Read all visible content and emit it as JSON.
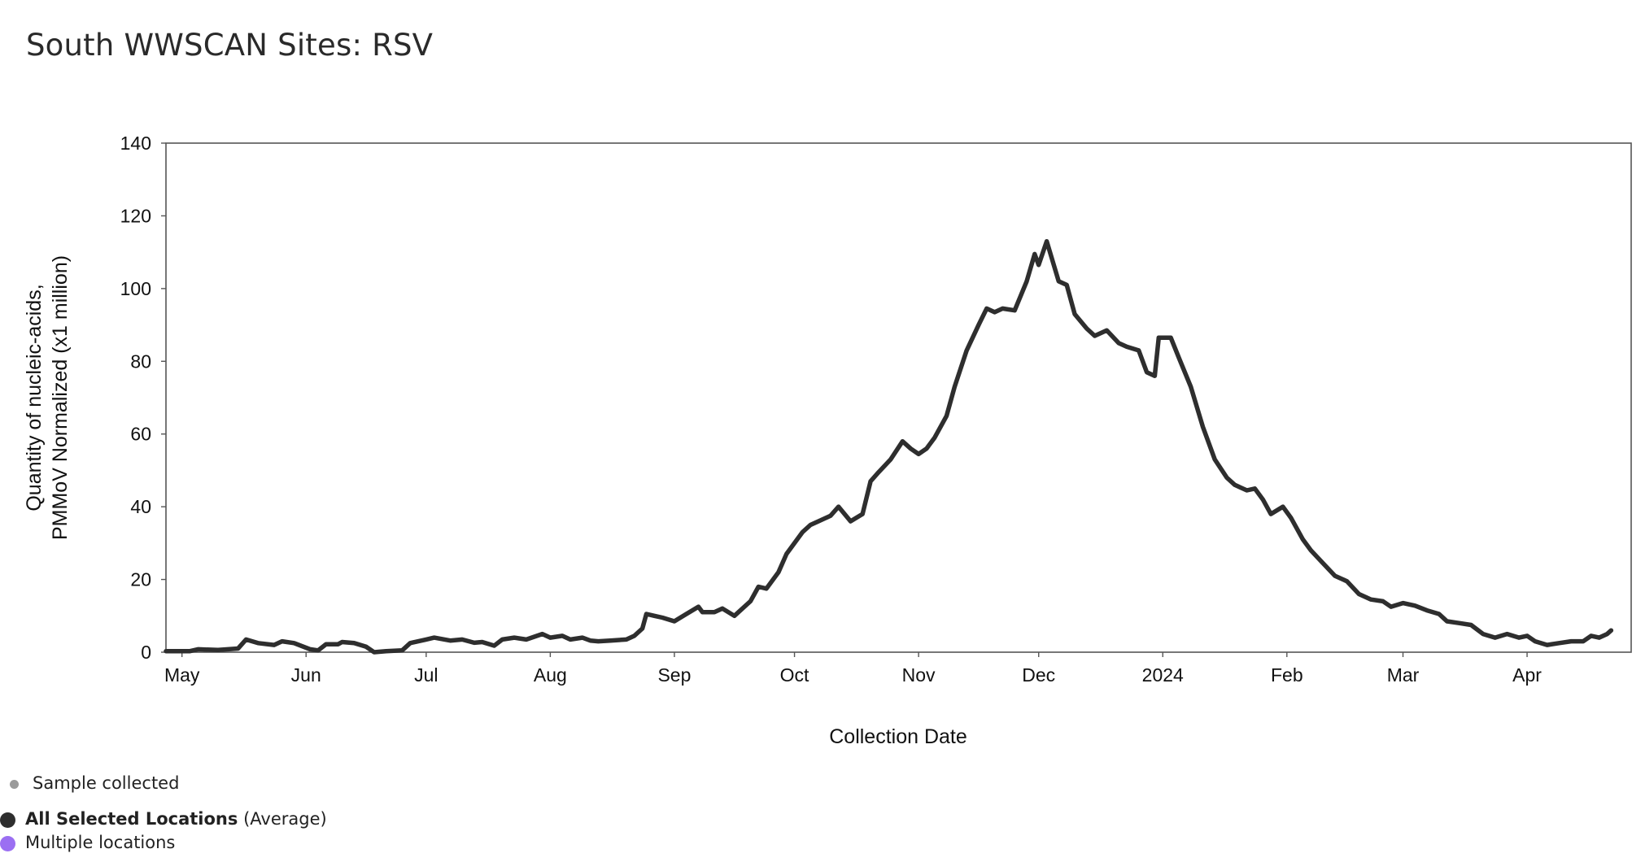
{
  "page": {
    "title": "South WWSCAN Sites: RSV"
  },
  "legend": {
    "sample_label": "Sample collected",
    "all_label_bold": "All Selected Locations",
    "all_label_suffix": "(Average)",
    "multi_label": "Multiple locations",
    "colors": {
      "sample": "#9a9a9a",
      "all": "#2e2e2e",
      "multi": "#9b6ff2"
    }
  },
  "chart_data": {
    "type": "line",
    "title": "South WWSCAN Sites: RSV",
    "xlabel": "Collection Date",
    "ylabel_lines": [
      "Quantity of nucleic-acids,",
      "PMMoV Normalized (x1 million)"
    ],
    "x_type": "date",
    "xlim": [
      "2023-04-27",
      "2024-04-27"
    ],
    "ylim": [
      0,
      140
    ],
    "yticks": [
      0,
      20,
      40,
      60,
      80,
      100,
      120,
      140
    ],
    "xticks": [
      {
        "date": "2023-05-01",
        "label": "May"
      },
      {
        "date": "2023-06-01",
        "label": "Jun"
      },
      {
        "date": "2023-07-01",
        "label": "Jul"
      },
      {
        "date": "2023-08-01",
        "label": "Aug"
      },
      {
        "date": "2023-09-01",
        "label": "Sep"
      },
      {
        "date": "2023-10-01",
        "label": "Oct"
      },
      {
        "date": "2023-11-01",
        "label": "Nov"
      },
      {
        "date": "2023-12-01",
        "label": "Dec"
      },
      {
        "date": "2024-01-01",
        "label": "2024"
      },
      {
        "date": "2024-02-01",
        "label": "Feb"
      },
      {
        "date": "2024-03-01",
        "label": "Mar"
      },
      {
        "date": "2024-04-01",
        "label": "Apr"
      }
    ],
    "grid": false,
    "series": [
      {
        "name": "All Selected Locations",
        "color": "#2e2e2e",
        "points": [
          [
            "2023-04-27",
            0.3
          ],
          [
            "2023-05-03",
            0.3
          ],
          [
            "2023-05-05",
            0.8
          ],
          [
            "2023-05-10",
            0.6
          ],
          [
            "2023-05-15",
            1.0
          ],
          [
            "2023-05-17",
            3.5
          ],
          [
            "2023-05-20",
            2.5
          ],
          [
            "2023-05-24",
            2.0
          ],
          [
            "2023-05-26",
            3.0
          ],
          [
            "2023-05-29",
            2.5
          ],
          [
            "2023-06-02",
            0.8
          ],
          [
            "2023-06-04",
            0.5
          ],
          [
            "2023-06-06",
            2.2
          ],
          [
            "2023-06-09",
            2.2
          ],
          [
            "2023-06-10",
            2.8
          ],
          [
            "2023-06-13",
            2.5
          ],
          [
            "2023-06-16",
            1.5
          ],
          [
            "2023-06-18",
            0.0
          ],
          [
            "2023-06-21",
            0.3
          ],
          [
            "2023-06-25",
            0.5
          ],
          [
            "2023-06-27",
            2.5
          ],
          [
            "2023-07-01",
            3.5
          ],
          [
            "2023-07-03",
            4.0
          ],
          [
            "2023-07-07",
            3.2
          ],
          [
            "2023-07-10",
            3.5
          ],
          [
            "2023-07-13",
            2.6
          ],
          [
            "2023-07-15",
            2.8
          ],
          [
            "2023-07-18",
            1.8
          ],
          [
            "2023-07-20",
            3.5
          ],
          [
            "2023-07-23",
            4.0
          ],
          [
            "2023-07-26",
            3.5
          ],
          [
            "2023-07-30",
            5.0
          ],
          [
            "2023-08-01",
            4.0
          ],
          [
            "2023-08-04",
            4.5
          ],
          [
            "2023-08-06",
            3.5
          ],
          [
            "2023-08-09",
            4.0
          ],
          [
            "2023-08-11",
            3.2
          ],
          [
            "2023-08-13",
            3.0
          ],
          [
            "2023-08-16",
            3.2
          ],
          [
            "2023-08-20",
            3.5
          ],
          [
            "2023-08-22",
            4.5
          ],
          [
            "2023-08-24",
            6.5
          ],
          [
            "2023-08-25",
            10.5
          ],
          [
            "2023-08-27",
            10.0
          ],
          [
            "2023-08-29",
            9.5
          ],
          [
            "2023-09-01",
            8.5
          ],
          [
            "2023-09-04",
            10.5
          ],
          [
            "2023-09-07",
            12.5
          ],
          [
            "2023-09-08",
            11.0
          ],
          [
            "2023-09-11",
            11.0
          ],
          [
            "2023-09-13",
            12.0
          ],
          [
            "2023-09-16",
            10.0
          ],
          [
            "2023-09-20",
            14.0
          ],
          [
            "2023-09-22",
            18.0
          ],
          [
            "2023-09-24",
            17.5
          ],
          [
            "2023-09-27",
            22.0
          ],
          [
            "2023-09-29",
            27.0
          ],
          [
            "2023-10-03",
            33.0
          ],
          [
            "2023-10-05",
            35.0
          ],
          [
            "2023-10-07",
            36.0
          ],
          [
            "2023-10-10",
            37.5
          ],
          [
            "2023-10-12",
            40.0
          ],
          [
            "2023-10-15",
            36.0
          ],
          [
            "2023-10-18",
            38.0
          ],
          [
            "2023-10-20",
            47.0
          ],
          [
            "2023-10-22",
            49.5
          ],
          [
            "2023-10-25",
            53.0
          ],
          [
            "2023-10-28",
            58.0
          ],
          [
            "2023-10-30",
            56.0
          ],
          [
            "2023-11-01",
            54.5
          ],
          [
            "2023-11-03",
            56.0
          ],
          [
            "2023-11-05",
            59.0
          ],
          [
            "2023-11-08",
            65.0
          ],
          [
            "2023-11-10",
            73.0
          ],
          [
            "2023-11-13",
            83.0
          ],
          [
            "2023-11-16",
            90.0
          ],
          [
            "2023-11-18",
            94.5
          ],
          [
            "2023-11-20",
            93.5
          ],
          [
            "2023-11-22",
            94.5
          ],
          [
            "2023-11-25",
            94.0
          ],
          [
            "2023-11-28",
            102.0
          ],
          [
            "2023-11-30",
            109.5
          ],
          [
            "2023-12-01",
            106.5
          ],
          [
            "2023-12-03",
            113.0
          ],
          [
            "2023-12-06",
            102.0
          ],
          [
            "2023-12-08",
            101.0
          ],
          [
            "2023-12-10",
            93.0
          ],
          [
            "2023-12-13",
            89.0
          ],
          [
            "2023-12-15",
            87.0
          ],
          [
            "2023-12-18",
            88.5
          ],
          [
            "2023-12-21",
            85.0
          ],
          [
            "2023-12-23",
            84.0
          ],
          [
            "2023-12-26",
            83.0
          ],
          [
            "2023-12-28",
            77.0
          ],
          [
            "2023-12-30",
            76.0
          ],
          [
            "2023-12-31",
            86.5
          ],
          [
            "2024-01-03",
            86.5
          ],
          [
            "2024-01-05",
            81.0
          ],
          [
            "2024-01-08",
            73.0
          ],
          [
            "2024-01-11",
            62.0
          ],
          [
            "2024-01-14",
            53.0
          ],
          [
            "2024-01-17",
            48.0
          ],
          [
            "2024-01-19",
            46.0
          ],
          [
            "2024-01-22",
            44.5
          ],
          [
            "2024-01-24",
            45.0
          ],
          [
            "2024-01-26",
            42.0
          ],
          [
            "2024-01-28",
            38.0
          ],
          [
            "2024-01-31",
            40.0
          ],
          [
            "2024-02-02",
            37.0
          ],
          [
            "2024-02-05",
            31.0
          ],
          [
            "2024-02-07",
            28.0
          ],
          [
            "2024-02-10",
            24.5
          ],
          [
            "2024-02-13",
            21.0
          ],
          [
            "2024-02-16",
            19.5
          ],
          [
            "2024-02-19",
            16.0
          ],
          [
            "2024-02-22",
            14.5
          ],
          [
            "2024-02-25",
            14.0
          ],
          [
            "2024-02-27",
            12.5
          ],
          [
            "2024-03-01",
            13.5
          ],
          [
            "2024-03-04",
            12.8
          ],
          [
            "2024-03-07",
            11.5
          ],
          [
            "2024-03-10",
            10.5
          ],
          [
            "2024-03-12",
            8.5
          ],
          [
            "2024-03-15",
            8.0
          ],
          [
            "2024-03-18",
            7.5
          ],
          [
            "2024-03-21",
            5.0
          ],
          [
            "2024-03-24",
            4.0
          ],
          [
            "2024-03-27",
            5.0
          ],
          [
            "2024-03-30",
            4.0
          ],
          [
            "2024-04-01",
            4.5
          ],
          [
            "2024-04-03",
            3.0
          ],
          [
            "2024-04-06",
            2.0
          ],
          [
            "2024-04-09",
            2.5
          ],
          [
            "2024-04-12",
            3.0
          ],
          [
            "2024-04-15",
            3.0
          ],
          [
            "2024-04-17",
            4.5
          ],
          [
            "2024-04-19",
            4.0
          ],
          [
            "2024-04-21",
            5.0
          ],
          [
            "2024-04-22",
            6.0
          ]
        ]
      }
    ]
  }
}
